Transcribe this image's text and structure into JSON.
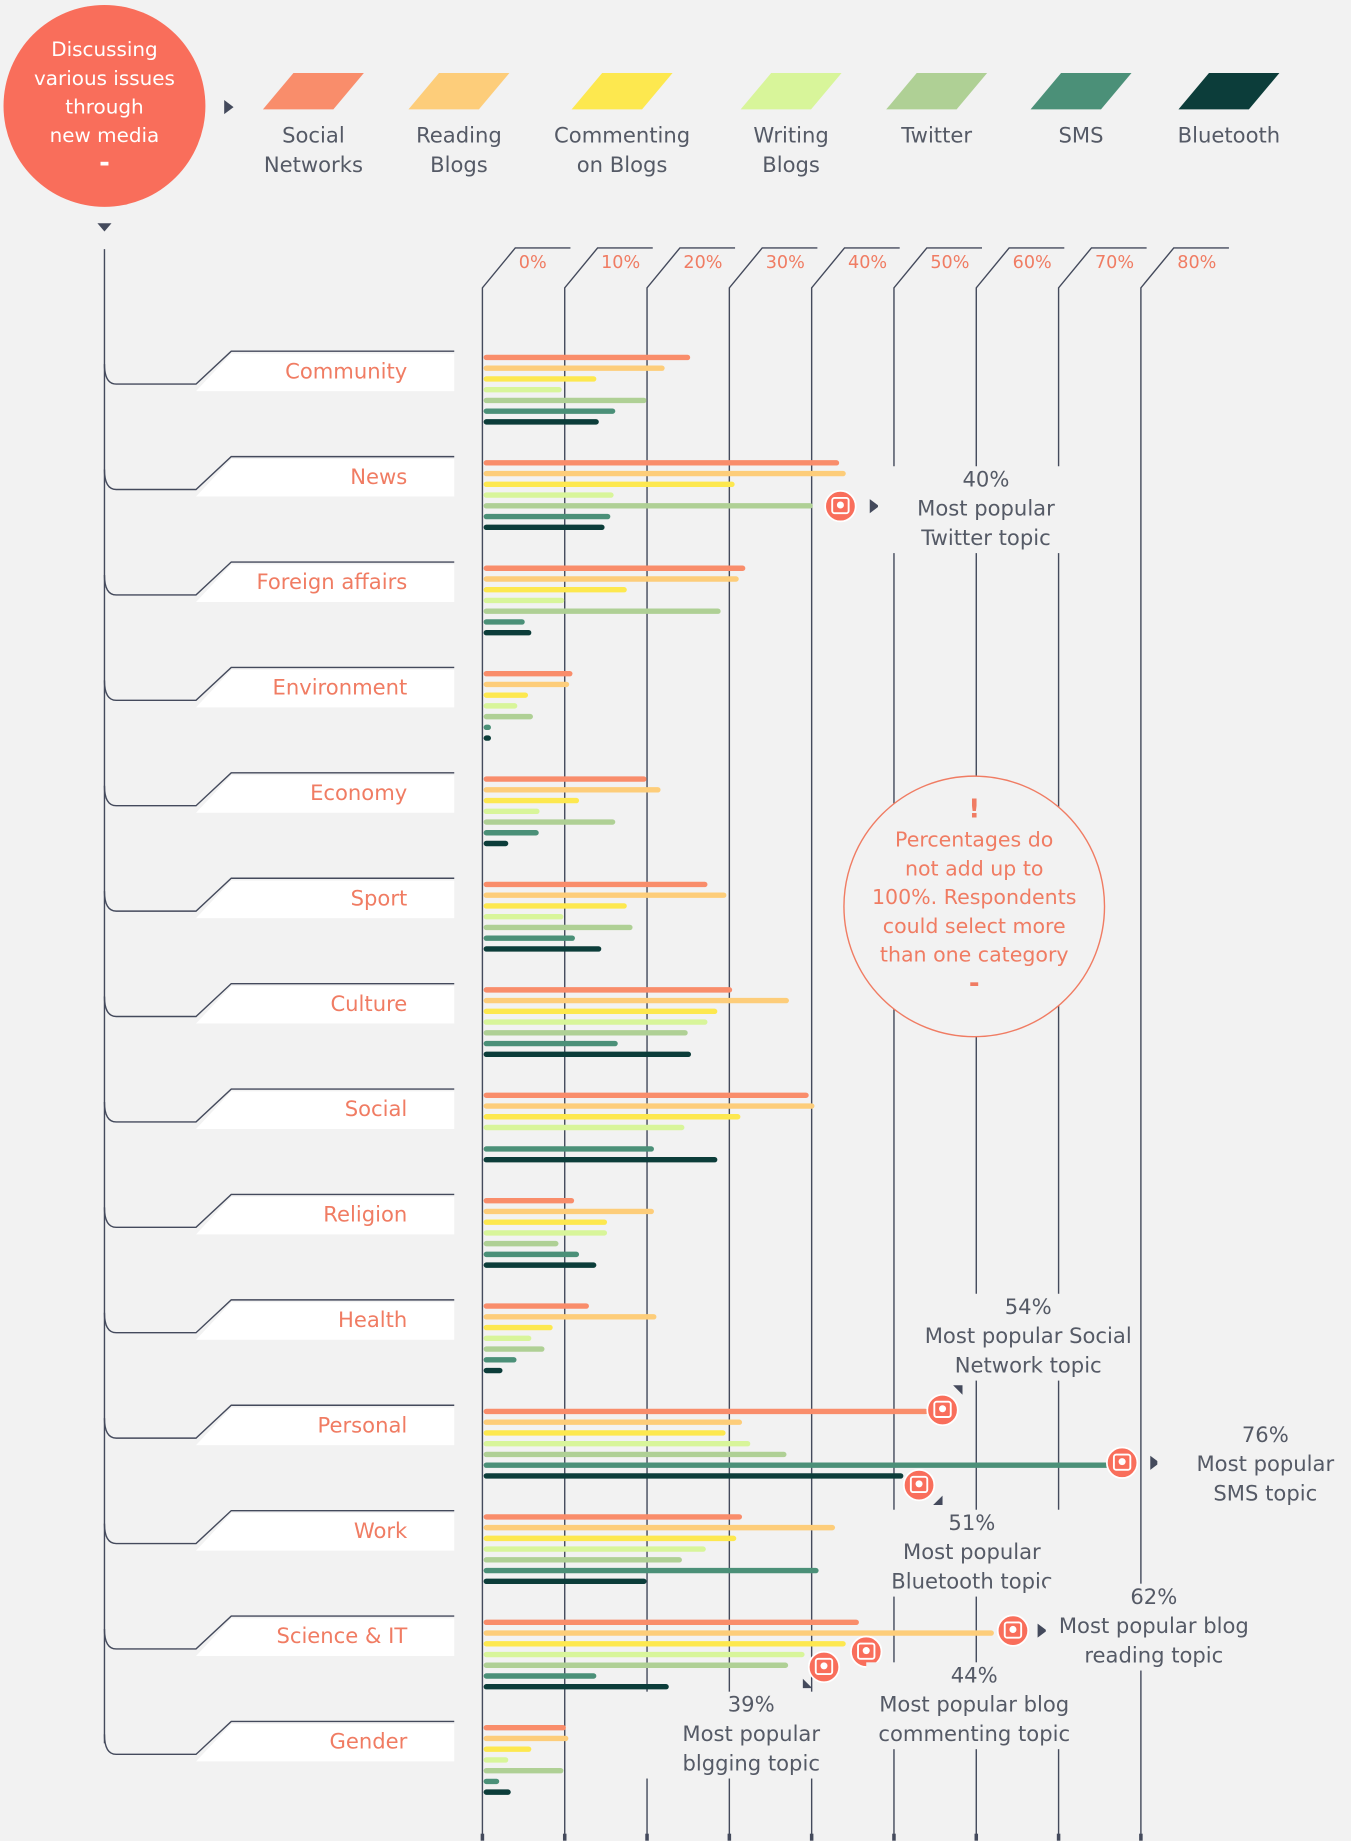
{
  "chart_data": {
    "type": "bar",
    "orientation": "horizontal",
    "title": [
      "Discussing",
      "various issues",
      "through",
      "new media"
    ],
    "title_mark": "-",
    "categories": [
      "Community",
      "News",
      "Foreign affairs",
      "Environment",
      "Economy",
      "Sport",
      "Culture",
      "Social",
      "Religion",
      "Health",
      "Personal",
      "Work",
      "Science & IT",
      "Gender"
    ],
    "series": [
      {
        "name": "Social Networks",
        "color": "#f98d6b",
        "values": [
          25.1,
          43.2,
          31.8,
          10.8,
          19.8,
          27.2,
          30.2,
          39.5,
          11,
          12.8,
          54,
          31.4,
          45.6,
          10
        ]
      },
      {
        "name": "Reading Blogs",
        "color": "#fdcd7a",
        "values": [
          22,
          44,
          31,
          10.4,
          21.5,
          29.5,
          37.1,
          40.2,
          20.7,
          21,
          31.4,
          42.7,
          62,
          10.3
        ]
      },
      {
        "name": "Commenting on Blogs",
        "color": "#fde84f",
        "values": [
          13.7,
          30.5,
          17.4,
          5.4,
          11.6,
          17.4,
          28.4,
          31.2,
          15,
          8.4,
          29.4,
          30.7,
          44,
          5.8
        ]
      },
      {
        "name": "Writing Blogs",
        "color": "#d8f59a",
        "values": [
          9.5,
          15.8,
          9.8,
          4.1,
          6.8,
          9.7,
          27.2,
          24.4,
          15,
          5.8,
          32.4,
          27,
          39,
          3
        ]
      },
      {
        "name": "Twitter",
        "color": "#afd095",
        "values": [
          19.8,
          40,
          28.8,
          6,
          16,
          18.1,
          24.8,
          0,
          9.1,
          7.4,
          36.8,
          24.1,
          37,
          9.7
        ]
      },
      {
        "name": "SMS",
        "color": "#4b9078",
        "values": [
          16,
          15.4,
          5,
          0.9,
          6.7,
          11.1,
          16.3,
          20.7,
          11.6,
          4,
          76,
          40.7,
          13.7,
          1.9
        ]
      },
      {
        "name": "Bluetooth",
        "color": "#0c3d3a",
        "values": [
          14,
          14.7,
          5.8,
          0.9,
          3,
          14.3,
          25.2,
          28.4,
          13.7,
          2.3,
          51,
          19.8,
          22.5,
          3.3
        ]
      }
    ],
    "xlim": [
      0,
      80
    ],
    "xticks": [
      {
        "value": 0,
        "label": "0%"
      },
      {
        "value": 10,
        "label": "10%"
      },
      {
        "value": 20,
        "label": "20%"
      },
      {
        "value": 30,
        "label": "30%"
      },
      {
        "value": 40,
        "label": "40%"
      },
      {
        "value": 50,
        "label": "50%"
      },
      {
        "value": 60,
        "label": "60%"
      },
      {
        "value": 70,
        "label": "70%"
      },
      {
        "value": 80,
        "label": "80%"
      }
    ],
    "grid": true,
    "annotations": [
      {
        "label": "40%",
        "text": [
          "Most popular",
          "Twitter topic"
        ]
      },
      {
        "label": "54%",
        "text": [
          "Most popular Social",
          "Network topic"
        ]
      },
      {
        "label": "76%",
        "text": [
          "Most popular",
          "SMS topic"
        ]
      },
      {
        "label": "51%",
        "text": [
          "Most popular",
          "Bluetooth topic"
        ]
      },
      {
        "label": "62%",
        "text": [
          "Most popular blog",
          "reading topic"
        ]
      },
      {
        "label": "44%",
        "text": [
          "Most popular blog",
          "commenting topic"
        ]
      },
      {
        "label": "39%",
        "text": [
          "Most popular",
          "blgging topic"
        ]
      }
    ],
    "note": {
      "mark": "!",
      "lines": [
        "Percentages do",
        "not add up to",
        "100%. Respondents",
        "could select more",
        "than one category"
      ],
      "end": "-"
    }
  }
}
